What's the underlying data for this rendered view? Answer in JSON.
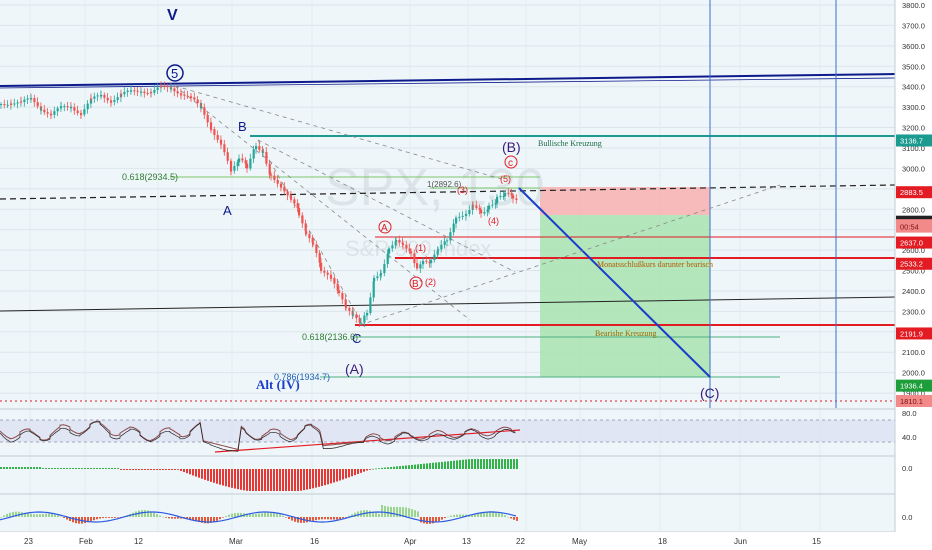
{
  "watermark": {
    "symbol": "SPX, 130",
    "name": "S&P 500 Index"
  },
  "colors": {
    "up": "#26a69a",
    "down": "#ef5350",
    "navy": "#0d1a8c",
    "teal": "#1b9a8f",
    "red": "#e31b23",
    "grid": "#dbe6ec",
    "green_zone": "#9fe0a9",
    "red_zone": "#f7a8a8"
  },
  "labels": {
    "wave_v": "V",
    "wave_5_circle": "5",
    "point_a_upper": "B",
    "point_a_lower": "A",
    "point_c_bottom": "C",
    "wave_b_paren": "(B)",
    "wave_c_circle": "c",
    "wave_5_paren": "(5)",
    "wave_4_paren": "(4)",
    "wave_3_paren": "(3)",
    "wave_1_paren": "(1)",
    "wave_2_paren": "(2)",
    "wave_a_circle": "A",
    "wave_b_circle": "B",
    "wave_a_paren": "(A)",
    "wave_c_paren": "(C)",
    "alt_iv": "Alt (IV)",
    "fib_0618_top": "0.618(2934.5)",
    "fib_1_top": "1(2892.6)",
    "fib_0618_bottom": "0.618(2136.6)",
    "fib_0786_bottom": "0.786(1934.7)",
    "note_bullish": "Bullische Kreuzung",
    "note_bearish": "Bearishe Kreuzung",
    "note_monthly": "Monatsschlußkurs darunter bearisch"
  },
  "price_axis": {
    "ticks": [
      "3800.0",
      "3700.0",
      "3600.0",
      "3500.0",
      "3400.0",
      "3300.0",
      "3200.0",
      "3100.0",
      "3000.0",
      "2900.0",
      "2800.0",
      "2700.0",
      "2600.0",
      "2500.0",
      "2400.0",
      "2300.0",
      "2200.0",
      "2100.0",
      "2000.0",
      "1900.0"
    ],
    "badges": [
      {
        "text": "3136.7",
        "kind": "teal"
      },
      {
        "text": "2883.5",
        "kind": "red"
      },
      {
        "text": "2739.1",
        "kind": "dark"
      },
      {
        "text": "2737.3",
        "kind": "redlite"
      },
      {
        "text": "00:54",
        "kind": "redlite"
      },
      {
        "text": "2637.0",
        "kind": "red"
      },
      {
        "text": "2533.2",
        "kind": "red"
      },
      {
        "text": "2191.9",
        "kind": "red"
      },
      {
        "text": "1936.4",
        "kind": "green"
      },
      {
        "text": "1810.1",
        "kind": "redlite"
      }
    ]
  },
  "rsi_axis": {
    "ticks": [
      "80.0",
      "40.0"
    ]
  },
  "osc_axis": {
    "ticks": [
      "0.0"
    ]
  },
  "macd_axis": {
    "ticks": [
      "0.0"
    ]
  },
  "time_axis": [
    "23",
    "Feb",
    "12",
    "Mar",
    "16",
    "Apr",
    "13",
    "22",
    "May",
    "18",
    "Jun",
    "15"
  ],
  "chart_data": {
    "type": "candlestick",
    "symbol": "SPX",
    "interval": "130",
    "ylim": [
      1800,
      3850
    ],
    "key_levels": [
      3136.7,
      2883.5,
      2739.1,
      2737.3,
      2637.0,
      2533.2,
      2191.9,
      1936.4,
      1810.1
    ],
    "fibonacci": [
      {
        "label": "0.618",
        "value": 2934.5
      },
      {
        "label": "1",
        "value": 2892.6
      },
      {
        "label": "0.618",
        "value": 2136.6
      },
      {
        "label": "0.786",
        "value": 1934.7
      }
    ],
    "close_path": [
      [
        0,
        3315
      ],
      [
        10,
        3330
      ],
      [
        20,
        3318
      ],
      [
        30,
        3335
      ],
      [
        40,
        3300
      ],
      [
        50,
        3265
      ],
      [
        60,
        3290
      ],
      [
        70,
        3305
      ],
      [
        80,
        3275
      ],
      [
        90,
        3330
      ],
      [
        100,
        3355
      ],
      [
        110,
        3340
      ],
      [
        120,
        3360
      ],
      [
        130,
        3370
      ],
      [
        140,
        3385
      ],
      [
        150,
        3378
      ],
      [
        160,
        3390
      ],
      [
        170,
        3392
      ],
      [
        180,
        3375
      ],
      [
        190,
        3340
      ],
      [
        200,
        3290
      ],
      [
        210,
        3205
      ],
      [
        220,
        3120
      ],
      [
        230,
        2975
      ],
      [
        238,
        3040
      ],
      [
        246,
        3005
      ],
      [
        255,
        3110
      ],
      [
        262,
        3090
      ],
      [
        270,
        2960
      ],
      [
        280,
        2925
      ],
      [
        290,
        2845
      ],
      [
        298,
        2780
      ],
      [
        305,
        2680
      ],
      [
        312,
        2620
      ],
      [
        320,
        2505
      ],
      [
        330,
        2450
      ],
      [
        338,
        2385
      ],
      [
        345,
        2305
      ],
      [
        352,
        2270
      ],
      [
        360,
        2237
      ],
      [
        366,
        2290
      ],
      [
        373,
        2470
      ],
      [
        380,
        2500
      ],
      [
        388,
        2610
      ],
      [
        395,
        2660
      ],
      [
        402,
        2640
      ],
      [
        410,
        2590
      ],
      [
        416,
        2515
      ],
      [
        422,
        2535
      ],
      [
        430,
        2540
      ],
      [
        437,
        2590
      ],
      [
        446,
        2660
      ],
      [
        455,
        2750
      ],
      [
        465,
        2790
      ],
      [
        472,
        2832
      ],
      [
        480,
        2790
      ],
      [
        488,
        2815
      ],
      [
        496,
        2848
      ],
      [
        504,
        2870
      ],
      [
        512,
        2855
      ],
      [
        518,
        2825
      ]
    ]
  }
}
